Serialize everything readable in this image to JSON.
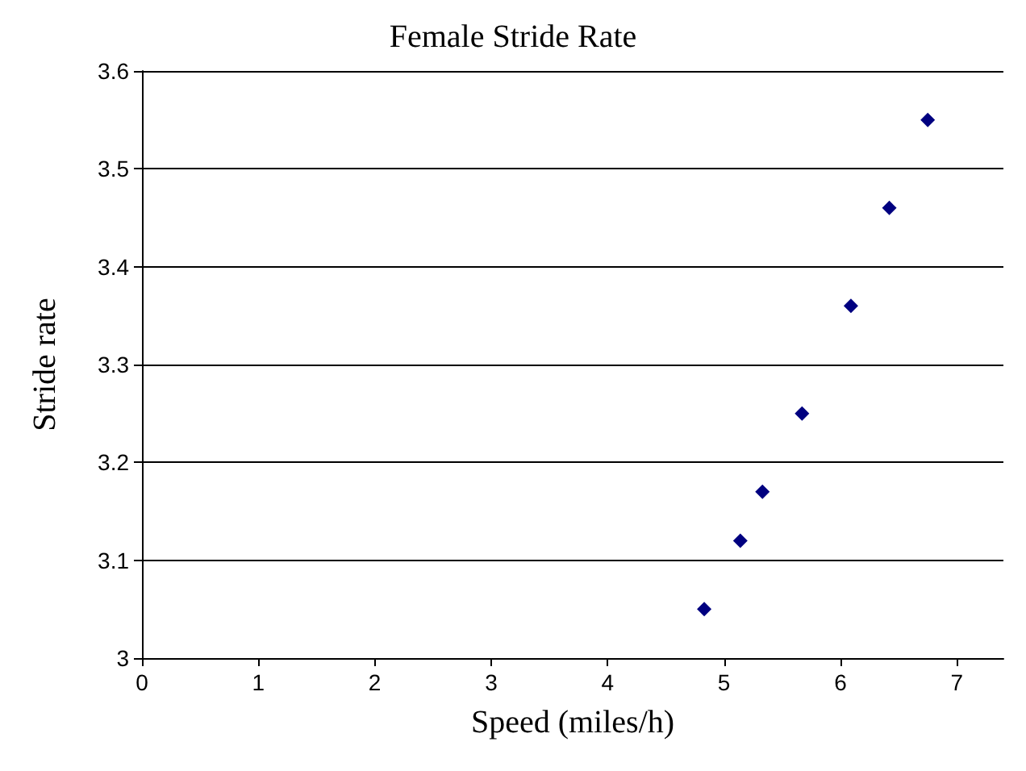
{
  "chart_data": {
    "type": "scatter",
    "title": "Female Stride Rate",
    "xlabel": "Speed (miles/h)",
    "ylabel": "Stride rate",
    "x": [
      4.83,
      5.14,
      5.33,
      5.67,
      6.09,
      6.42,
      6.75
    ],
    "series": [
      {
        "color": "#000080",
        "values": [
          3.05,
          3.12,
          3.17,
          3.25,
          3.36,
          3.46,
          3.55
        ]
      }
    ],
    "xlim": [
      0,
      7.4
    ],
    "xticks": [
      0,
      1,
      2,
      3,
      4,
      5,
      6,
      7
    ],
    "ylim": [
      3,
      3.6
    ],
    "yticks": [
      3,
      3.1,
      3.2,
      3.3,
      3.4,
      3.5,
      3.6
    ],
    "grid": "y",
    "marker": "diamond"
  }
}
